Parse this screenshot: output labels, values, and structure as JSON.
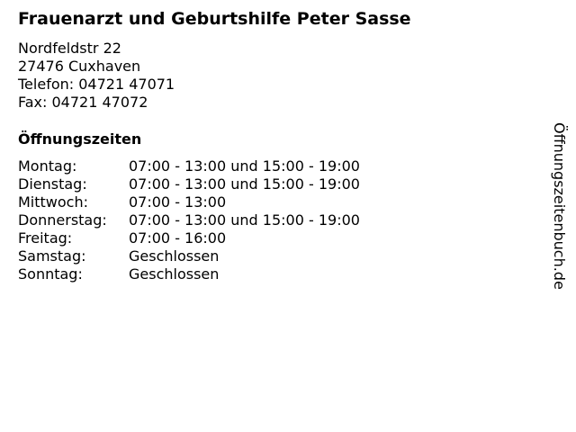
{
  "title": "Frauenarzt und Geburtshilfe Peter Sasse",
  "address": [
    "Nordfeldstr 22",
    "27476 Cuxhaven",
    "Telefon: 04721 47071",
    "Fax: 04721 47072"
  ],
  "hours_heading": "Öffnungszeiten",
  "hours": [
    {
      "day": "Montag:",
      "time": "07:00 - 13:00 und 15:00 - 19:00"
    },
    {
      "day": "Dienstag:",
      "time": "07:00 - 13:00 und 15:00 - 19:00"
    },
    {
      "day": "Mittwoch:",
      "time": "07:00 - 13:00"
    },
    {
      "day": "Donnerstag:",
      "time": "07:00 - 13:00 und 15:00 - 19:00"
    },
    {
      "day": "Freitag:",
      "time": "07:00 - 16:00"
    },
    {
      "day": "Samstag:",
      "time": "Geschlossen"
    },
    {
      "day": "Sonntag:",
      "time": "Geschlossen"
    }
  ],
  "watermark": "Öffnungszeitenbuch.de"
}
